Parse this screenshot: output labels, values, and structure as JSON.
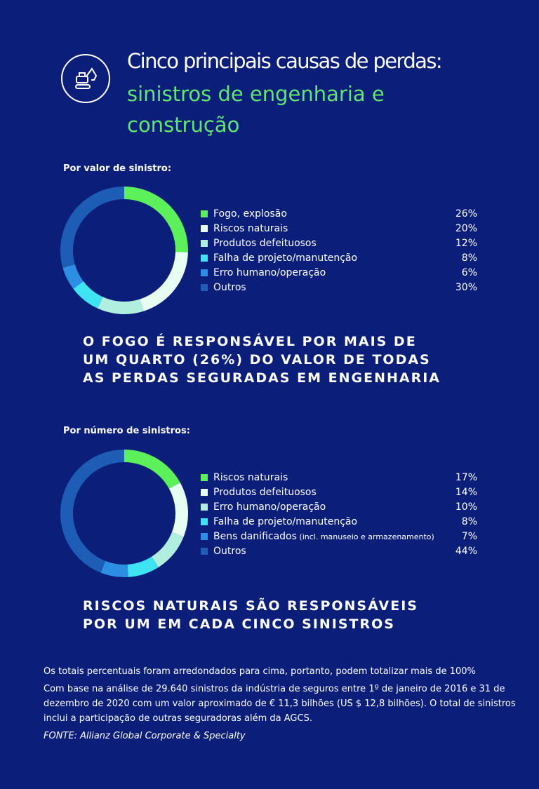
{
  "header": {
    "icon": "excavator-icon",
    "title_line1": "Cinco principais causas de perdas:",
    "title_line2": "sinistros de engenharia e construção"
  },
  "chart_data": [
    {
      "type": "pie",
      "donut": true,
      "title": "Por valor de sinistro:",
      "categories": [
        "Fogo, explosão",
        "Riscos naturais",
        "Produtos defeituosos",
        "Falha de projeto/manutenção",
        "Erro humano/operação",
        "Outros"
      ],
      "values": [
        26,
        20,
        12,
        8,
        6,
        30
      ],
      "labels": [
        "26%",
        "20%",
        "12%",
        "8%",
        "6%",
        "30%"
      ],
      "colors": [
        "#5cf05a",
        "#e6fff2",
        "#b0eedf",
        "#3ee4f2",
        "#2c8fe4",
        "#1e5db6"
      ],
      "legend": "right"
    },
    {
      "type": "pie",
      "donut": true,
      "title": "Por número de sinistros:",
      "categories": [
        "Riscos naturais",
        "Produtos defeituosos",
        "Erro humano/operação",
        "Falha de projeto/manutenção",
        "Bens danificados",
        "Outros"
      ],
      "category_notes": [
        "",
        "",
        "",
        "",
        "(incl. manuseio e armazenamento)",
        ""
      ],
      "values": [
        17,
        14,
        10,
        8,
        7,
        44
      ],
      "labels": [
        "17%",
        "14%",
        "10%",
        "8%",
        "7%",
        "44%"
      ],
      "colors": [
        "#5cf05a",
        "#e6fff2",
        "#b0eedf",
        "#3ee4f2",
        "#2c8fe4",
        "#1e5db6"
      ],
      "legend": "right"
    }
  ],
  "callouts": [
    [
      "O FOGO É RESPONSÁVEL POR MAIS DE",
      "UM QUARTO (26%) DO VALOR DE TODAS",
      "AS PERDAS SEGURADAS EM ENGENHARIA"
    ],
    [
      "RISCOS NATURAIS SÃO RESPONSÁVEIS",
      "POR UM EM CADA CINCO SINISTROS"
    ]
  ],
  "notes": {
    "rounding": "Os totais percentuais foram arredondados para cima, portanto, podem totalizar mais de 100%",
    "basis": "Com base na análise de 29.640 sinistros da indústria de seguros entre 1º de janeiro de 2016 e 31 de dezembro de 2020 com um valor aproximado de € 11,3 bilhões (US $ 12,8 bilhões). O total de sinistros inclui a participação de outras seguradoras além da AGCS.",
    "source": "FONTE: Allianz Global Corporate & Specialty"
  }
}
